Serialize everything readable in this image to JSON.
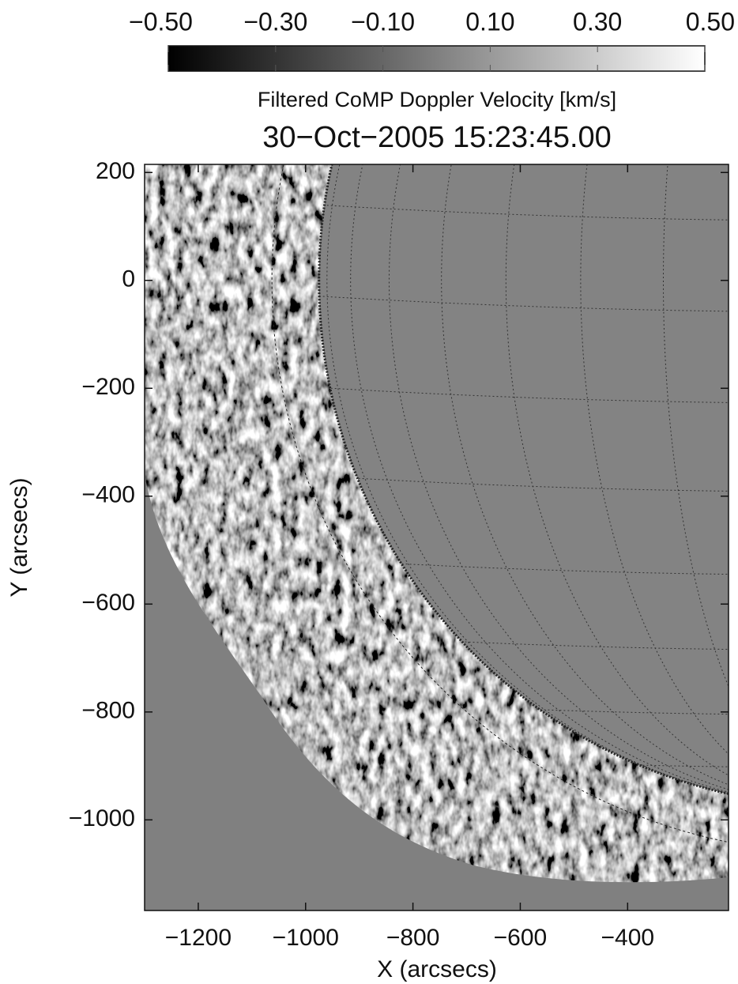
{
  "chart_data": {
    "type": "image",
    "title": "30−Oct−2005 15:23:45.00",
    "subtitle": "Filtered CoMP Doppler Velocity [km/s]",
    "x_label": "X (arcsecs)",
    "y_label": "Y (arcsecs)",
    "xlim": [
      -1300,
      -212
    ],
    "ylim": [
      -1168,
      215
    ],
    "xticks": [
      {
        "value": -1200,
        "label": "−1200"
      },
      {
        "value": -1000,
        "label": "−1000"
      },
      {
        "value": -800,
        "label": "−800"
      },
      {
        "value": -600,
        "label": "−600"
      },
      {
        "value": -400,
        "label": "−400"
      }
    ],
    "yticks": [
      200,
      0,
      {
        "value": -200,
        "label": "−200"
      },
      {
        "value": -400,
        "label": "−400"
      },
      {
        "value": -600,
        "label": "−600"
      },
      {
        "value": -800,
        "label": "−800"
      },
      {
        "value": -1000,
        "label": "−1000"
      }
    ],
    "colorbar": {
      "lim": [
        -0.5,
        0.5
      ],
      "ticks": [
        {
          "value": -0.5,
          "label": "−0.50"
        },
        {
          "value": -0.3,
          "label": "−0.30"
        },
        {
          "value": -0.1,
          "label": "−0.10"
        },
        {
          "value": 0.1,
          "label": "0.10"
        },
        {
          "value": 0.3,
          "label": "0.30"
        },
        {
          "value": 0.5,
          "label": "0.50"
        }
      ]
    }
  }
}
